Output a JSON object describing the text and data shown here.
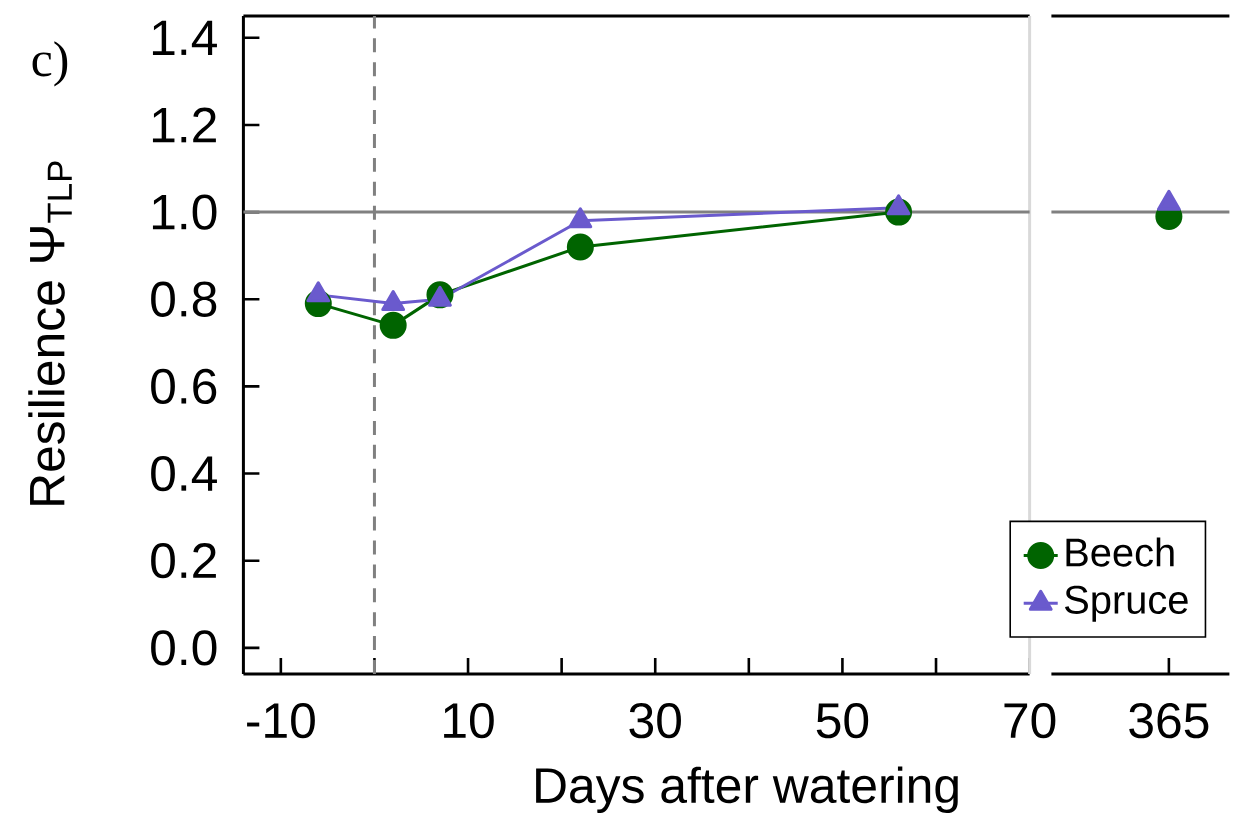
{
  "chart_data": [
    {
      "type": "line",
      "title": "c)",
      "xlabel": "Days after watering",
      "ylabel": "Resilience Ψ$_{TLP}$",
      "xlim": [
        -14,
        70
      ],
      "ylim": [
        -0.06,
        1.45
      ],
      "xticks": [
        -10,
        {
          "value": 0,
          "label": null
        },
        10,
        {
          "value": 20,
          "label": null
        },
        30,
        {
          "value": 40,
          "label": null
        },
        50,
        {
          "value": 60,
          "label": null
        },
        70
      ],
      "yticks": [
        {
          "value": 0,
          "label": "0.0"
        },
        0.2,
        0.4,
        0.6,
        0.8,
        {
          "value": 1,
          "label": "1.0"
        },
        1.2,
        1.4
      ],
      "series": [
        {
          "color": "#006400",
          "marker": "circle",
          "x": [
            -6,
            2,
            7,
            22,
            56
          ],
          "values": [
            0.79,
            0.74,
            0.81,
            0.92,
            1.0
          ]
        },
        {
          "color": "#6a5acd",
          "marker": "triangle",
          "x": [
            -6,
            2,
            7,
            22,
            56
          ],
          "values": [
            0.81,
            0.79,
            0.8,
            0.98,
            1.01
          ]
        }
      ],
      "ref_lines": [
        {
          "axis": "y",
          "value": 1.0,
          "color": "#808080",
          "line_style": "solid"
        },
        {
          "axis": "x",
          "value": 0,
          "color": "#808080",
          "line_style": "dashed"
        }
      ]
    },
    {
      "type": "line",
      "categories": [
        "365"
      ],
      "ylim": [
        -0.06,
        1.45
      ],
      "tick_labels": "x",
      "legend": "bottom right",
      "series": [
        {
          "name": "Beech",
          "color": "#006400",
          "marker": "circle",
          "values": [
            0.99
          ]
        },
        {
          "name": "Spruce",
          "color": "#6a5acd",
          "marker": "triangle",
          "values": [
            1.02
          ]
        }
      ],
      "ref_lines": [
        {
          "axis": "y",
          "value": 1.0,
          "color": "#808080",
          "line_style": "solid"
        }
      ]
    }
  ]
}
